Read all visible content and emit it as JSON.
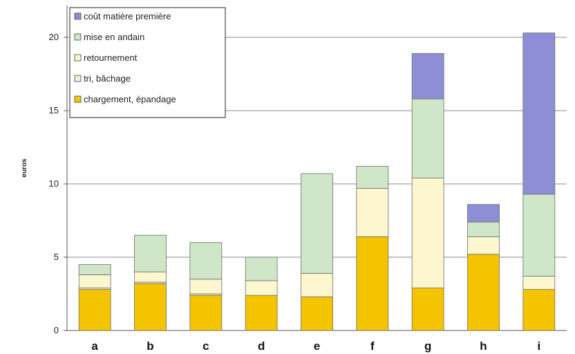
{
  "chart_data": {
    "type": "bar",
    "stacked": true,
    "title": "",
    "xlabel": "",
    "ylabel": "euros",
    "ylim": [
      0,
      22
    ],
    "yticks": [
      0,
      5,
      10,
      15,
      20
    ],
    "grid": true,
    "legend_position": "top-left",
    "categories": [
      "a",
      "b",
      "c",
      "d",
      "e",
      "f",
      "g",
      "h",
      "i"
    ],
    "series": [
      {
        "name": "chargement, épandage",
        "color": "#f5c400",
        "values": [
          2.8,
          3.2,
          2.4,
          2.4,
          2.3,
          6.4,
          2.9,
          5.2,
          2.8
        ]
      },
      {
        "name": "tri, bâchage",
        "color": "#f2eed4",
        "values": [
          0.1,
          0.1,
          0.1,
          0.0,
          0.0,
          0.0,
          0.0,
          0.0,
          0.0
        ]
      },
      {
        "name": "retournement",
        "color": "#fdf7cf",
        "values": [
          0.9,
          0.7,
          1.0,
          1.0,
          1.6,
          3.3,
          7.5,
          1.2,
          0.9
        ]
      },
      {
        "name": "mise en andain",
        "color": "#cfe6c8",
        "values": [
          0.7,
          2.5,
          2.5,
          1.6,
          6.8,
          1.5,
          5.4,
          1.0,
          5.6
        ]
      },
      {
        "name": "coût matière première",
        "color": "#8e8ed6",
        "values": [
          0.0,
          0.0,
          0.0,
          0.0,
          0.0,
          0.0,
          3.1,
          1.2,
          11.0
        ]
      }
    ],
    "legend_order": [
      "coût matière première",
      "mise en andain",
      "retournement",
      "tri, bâchage",
      "chargement, épandage"
    ]
  }
}
